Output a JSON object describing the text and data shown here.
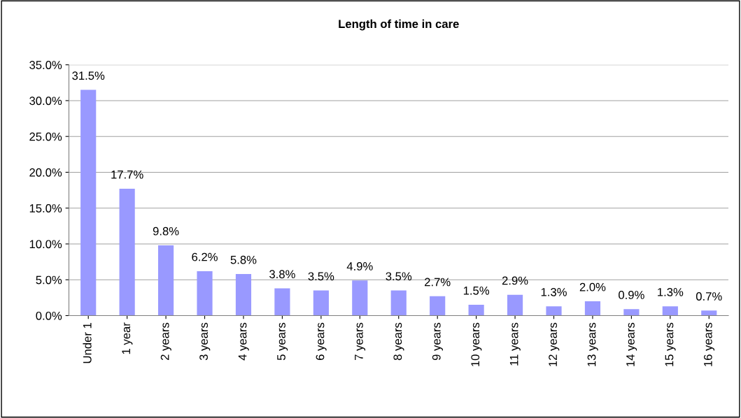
{
  "chart_data": {
    "type": "bar",
    "title": "Length of time in care",
    "categories": [
      "Under 1",
      "1 year",
      "2 years",
      "3 years",
      "4 years",
      "5 years",
      "6 years",
      "7 years",
      "8 years",
      "9 years",
      "10 years",
      "11 years",
      "12 years",
      "13 years",
      "14 years",
      "15 years",
      "16 years"
    ],
    "values": [
      31.5,
      17.7,
      9.8,
      6.2,
      5.8,
      3.8,
      3.5,
      4.9,
      3.5,
      2.7,
      1.5,
      2.9,
      1.3,
      2.0,
      0.9,
      1.3,
      0.7
    ],
    "value_labels": [
      "31.5%",
      "17.7%",
      "9.8%",
      "6.2%",
      "5.8%",
      "3.8%",
      "3.5%",
      "4.9%",
      "3.5%",
      "2.7%",
      "1.5%",
      "2.9%",
      "1.3%",
      "2.0%",
      "0.9%",
      "1.3%",
      "0.7%"
    ],
    "color": "#9999ff",
    "ylim": [
      0,
      35
    ],
    "yticks": [
      {
        "value": 0,
        "label": "0.0%"
      },
      {
        "value": 5,
        "label": "5.0%"
      },
      {
        "value": 10,
        "label": "10.0%"
      },
      {
        "value": 15,
        "label": "15.0%"
      },
      {
        "value": 20,
        "label": "20.0%"
      },
      {
        "value": 25,
        "label": "25.0%"
      },
      {
        "value": 30,
        "label": "30.0%"
      },
      {
        "value": 35,
        "label": "35.0%"
      }
    ],
    "grid": "y"
  }
}
